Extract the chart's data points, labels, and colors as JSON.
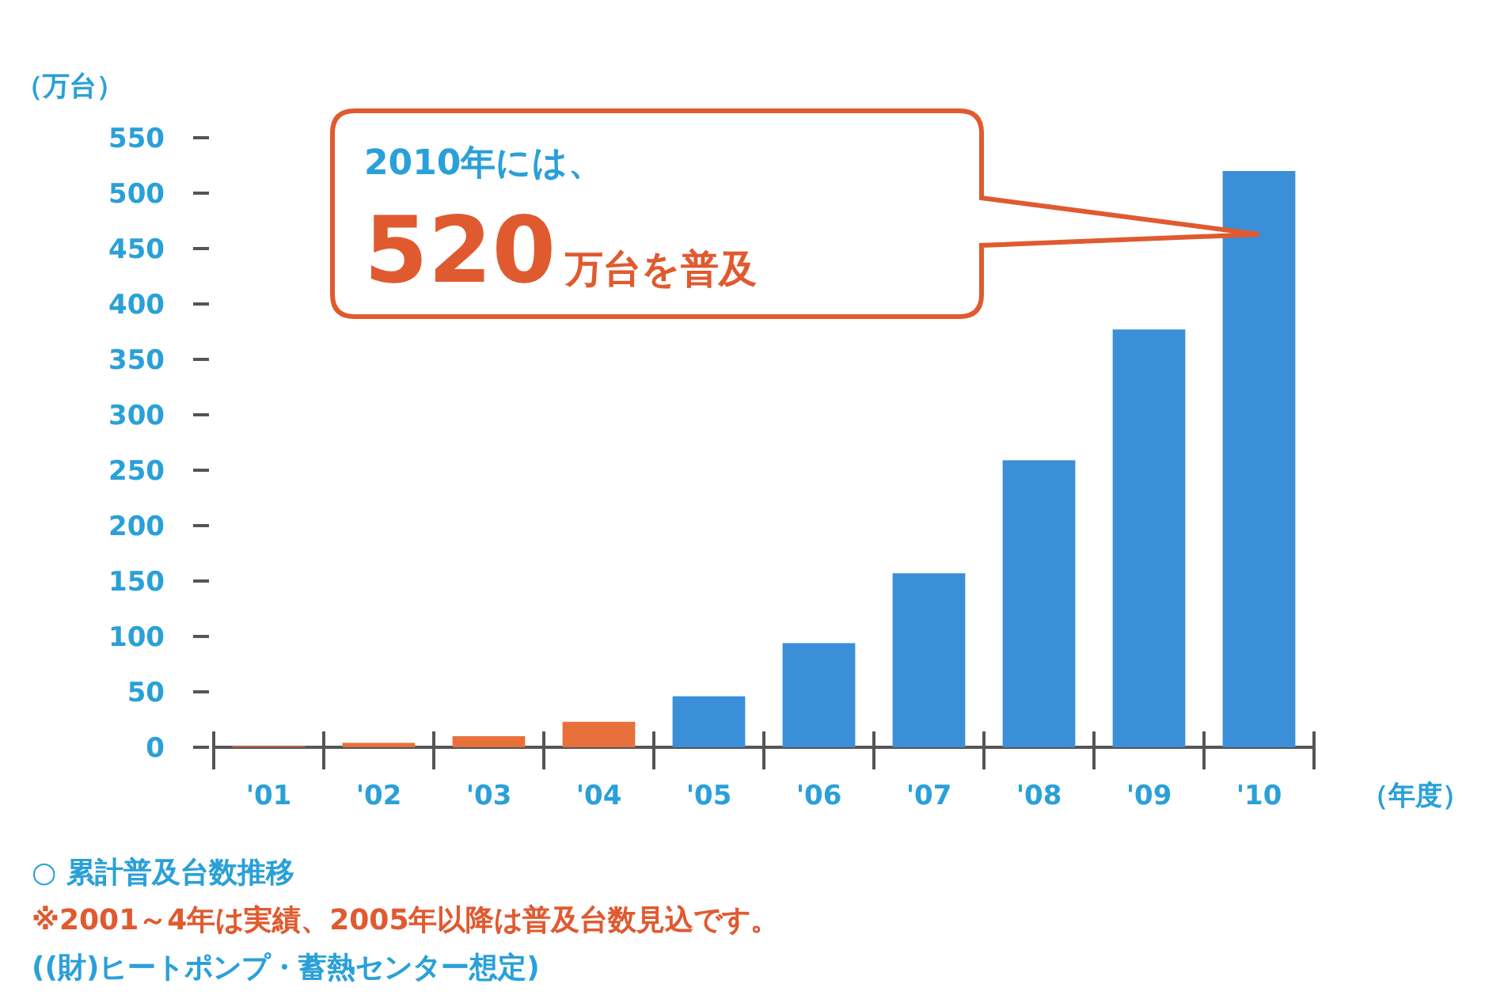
{
  "chart_data": {
    "type": "bar",
    "ylabel": "（万台）",
    "xlabel": "（年度）",
    "categories": [
      "'01",
      "'02",
      "'03",
      "'04",
      "'05",
      "'06",
      "'07",
      "'08",
      "'09",
      "'10"
    ],
    "values": [
      1,
      4,
      10,
      23,
      46,
      94,
      157,
      259,
      377,
      520
    ],
    "colors": [
      "#e8703a",
      "#e8703a",
      "#e8703a",
      "#e8703a",
      "#3a8fd8",
      "#3a8fd8",
      "#3a8fd8",
      "#3a8fd8",
      "#3a8fd8",
      "#3a8fd8"
    ],
    "ylim": [
      0,
      550
    ],
    "yticks": [
      0,
      50,
      100,
      150,
      200,
      250,
      300,
      350,
      400,
      450,
      500,
      550
    ],
    "grid": false,
    "annotations": [
      "2010年には、\n520万台を普及",
      "○ 累計普及台数推移",
      "※2001～4年は実績、2005年以降は普及台数見込です。",
      "((財)ヒートポンプ・蓄熱センター想定)"
    ]
  }
}
